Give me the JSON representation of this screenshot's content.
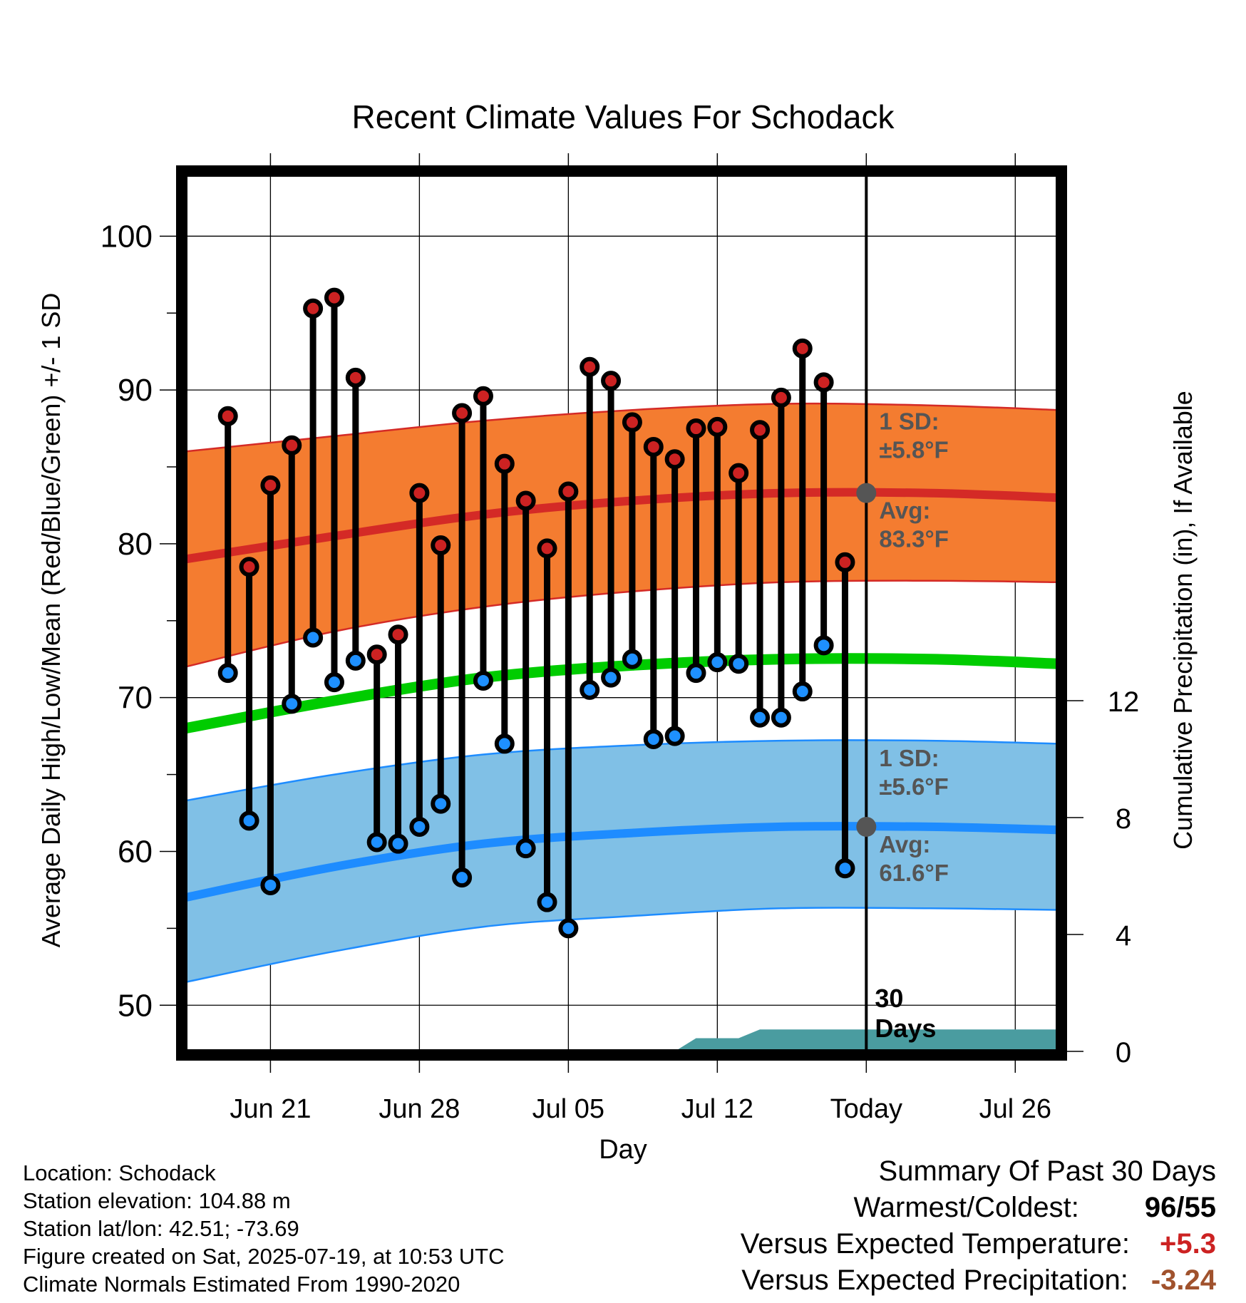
{
  "chart_data": {
    "type": "line",
    "title": "Recent Climate Values For Schodack",
    "xlabel": "Day",
    "ylabel": "Average Daily High/Low/Mean (Red/Blue/Green) +/- 1 SD",
    "y2label": "Cumulative Precipitation (in), If Available",
    "x_tick_labels": [
      "Jun 21",
      "Jun 28",
      "Jul 05",
      "Jul 12",
      "Today",
      "Jul 26"
    ],
    "x_tick_dates": [
      "2025-06-21",
      "2025-06-28",
      "2025-07-05",
      "2025-07-12",
      "2025-07-19",
      "2025-07-26"
    ],
    "xlim": [
      "2025-06-17",
      "2025-07-28"
    ],
    "ylim": [
      47,
      104
    ],
    "y_ticks": [
      50,
      60,
      70,
      80,
      90,
      100
    ],
    "y2lim": [
      0,
      30
    ],
    "y2_ticks": [
      0,
      4,
      8,
      12
    ],
    "grid": true,
    "today_date": "2025-07-19",
    "today_label": "30 Days",
    "observed": {
      "dates": [
        "2025-06-19",
        "2025-06-20",
        "2025-06-21",
        "2025-06-22",
        "2025-06-23",
        "2025-06-24",
        "2025-06-25",
        "2025-06-26",
        "2025-06-27",
        "2025-06-28",
        "2025-06-29",
        "2025-06-30",
        "2025-07-01",
        "2025-07-02",
        "2025-07-03",
        "2025-07-04",
        "2025-07-05",
        "2025-07-06",
        "2025-07-07",
        "2025-07-08",
        "2025-07-09",
        "2025-07-10",
        "2025-07-11",
        "2025-07-12",
        "2025-07-13",
        "2025-07-14",
        "2025-07-15",
        "2025-07-16",
        "2025-07-17",
        "2025-07-18"
      ],
      "high": [
        88.3,
        78.5,
        83.8,
        86.4,
        95.3,
        96.0,
        90.8,
        72.8,
        74.1,
        83.3,
        79.9,
        88.5,
        89.6,
        85.2,
        82.8,
        79.7,
        83.4,
        91.5,
        90.6,
        87.9,
        86.3,
        85.5,
        87.5,
        87.6,
        84.6,
        87.4,
        89.5,
        92.7,
        90.5,
        78.8
      ],
      "low": [
        71.6,
        62.0,
        57.8,
        69.6,
        73.9,
        71.0,
        72.4,
        60.6,
        60.5,
        61.6,
        63.1,
        58.3,
        71.1,
        67.0,
        60.2,
        56.7,
        55.0,
        70.5,
        71.3,
        72.5,
        67.3,
        67.5,
        71.6,
        72.3,
        72.2,
        68.7,
        68.7,
        70.4,
        73.4,
        58.9
      ]
    },
    "normal_dates": [
      "2025-06-17",
      "2025-06-24",
      "2025-07-01",
      "2025-07-08",
      "2025-07-15",
      "2025-07-22",
      "2025-07-28"
    ],
    "normal_high": [
      79.0,
      80.5,
      81.9,
      82.8,
      83.3,
      83.3,
      83.0
    ],
    "normal_high_sd_upper": [
      86.0,
      87.0,
      88.0,
      88.7,
      89.1,
      89.0,
      88.7
    ],
    "normal_high_sd_lower": [
      72.0,
      74.3,
      75.9,
      76.9,
      77.5,
      77.6,
      77.5
    ],
    "normal_mean": [
      68.0,
      69.8,
      71.3,
      72.1,
      72.5,
      72.5,
      72.2
    ],
    "normal_low": [
      57.0,
      59.0,
      60.5,
      61.2,
      61.6,
      61.6,
      61.4
    ],
    "normal_low_sd_upper": [
      63.3,
      65.0,
      66.3,
      66.9,
      67.2,
      67.2,
      67.0
    ],
    "normal_low_sd_lower": [
      51.5,
      53.5,
      55.1,
      55.8,
      56.3,
      56.3,
      56.2
    ],
    "precip_dates": [
      "2025-07-07",
      "2025-07-10",
      "2025-07-11",
      "2025-07-12",
      "2025-07-13",
      "2025-07-14",
      "2025-07-28"
    ],
    "precip_cum": [
      0,
      0,
      0.45,
      0.45,
      0.45,
      0.75,
      0.75
    ],
    "annotations": {
      "high_sd": "1 SD:",
      "high_sd_value": "±5.8°F",
      "high_avg": "Avg:",
      "high_avg_value": "83.3°F",
      "low_sd": "1 SD:",
      "low_sd_value": "±5.6°F",
      "low_avg": "Avg:",
      "low_avg_value": "61.6°F"
    },
    "colors": {
      "high_band": "#f47c30",
      "high_line": "#d42a26",
      "mean_line": "#00cc00",
      "low_band": "#80c0e6",
      "low_line": "#1e8cff",
      "precip": "#4a9ca0",
      "high_dot": "#cc2222",
      "low_dot": "#1e90ff",
      "annotation": "#555555"
    }
  },
  "info": {
    "location": "Location: Schodack",
    "elevation": "Station elevation: 104.88 m",
    "latlon": "Station lat/lon: 42.51; -73.69",
    "created": "Figure created on Sat, 2025-07-19, at 10:53 UTC",
    "normals": "Climate Normals Estimated From 1990-2020"
  },
  "summary": {
    "title": "Summary Of Past 30 Days",
    "warmest_coldest_label": "Warmest/Coldest:",
    "warmest": "96",
    "coldest": "55",
    "temp_label": "Versus Expected Temperature:",
    "temp_value": "+5.3",
    "precip_label": "Versus Expected Precipitation:",
    "precip_value": "-3.24",
    "temp_color": "#cc2222",
    "precip_color": "#a0522d"
  }
}
